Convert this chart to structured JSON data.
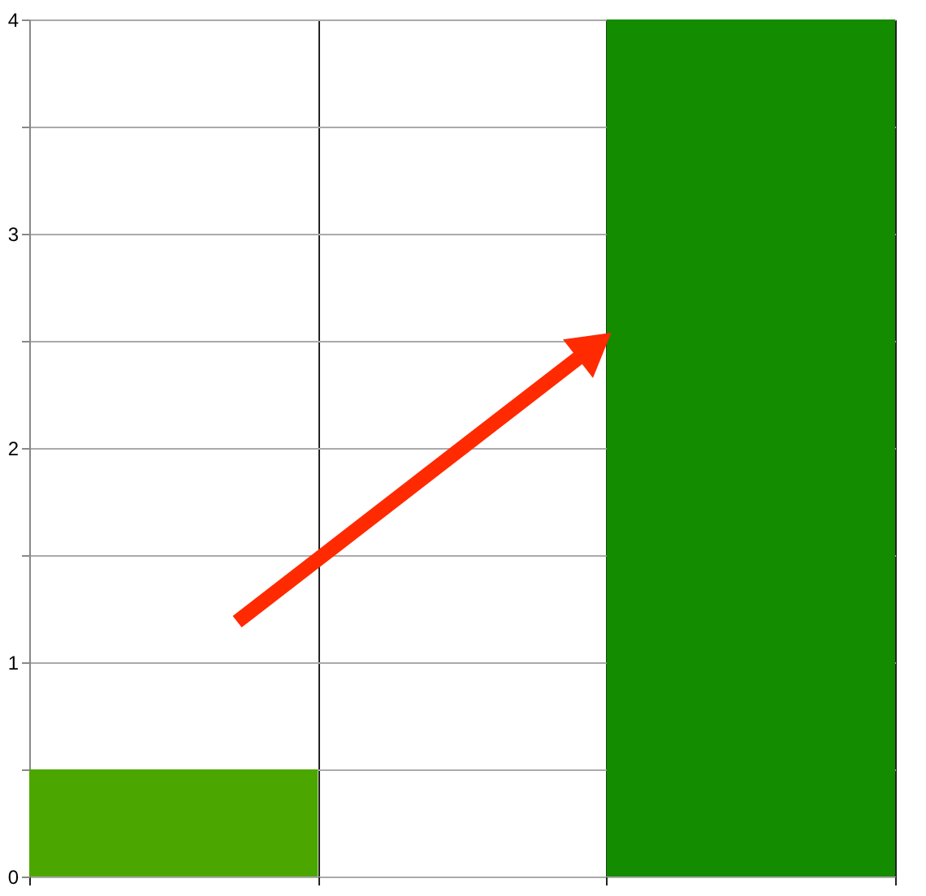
{
  "chart_data": {
    "type": "bar",
    "categories": [
      null,
      null,
      null
    ],
    "values": [
      0.5,
      null,
      4
    ],
    "colors": [
      "#4ca600",
      "#4ca600",
      "#138c00"
    ],
    "ylim": [
      0,
      4
    ],
    "yticks": [
      0,
      {
        "value": 0.5,
        "label": null
      },
      1,
      {
        "value": 1.5,
        "label": null
      },
      2,
      {
        "value": 2.5,
        "label": null
      },
      3,
      {
        "value": 3.5,
        "label": null
      },
      4
    ],
    "grid": true,
    "tick_labels": "y"
  }
}
